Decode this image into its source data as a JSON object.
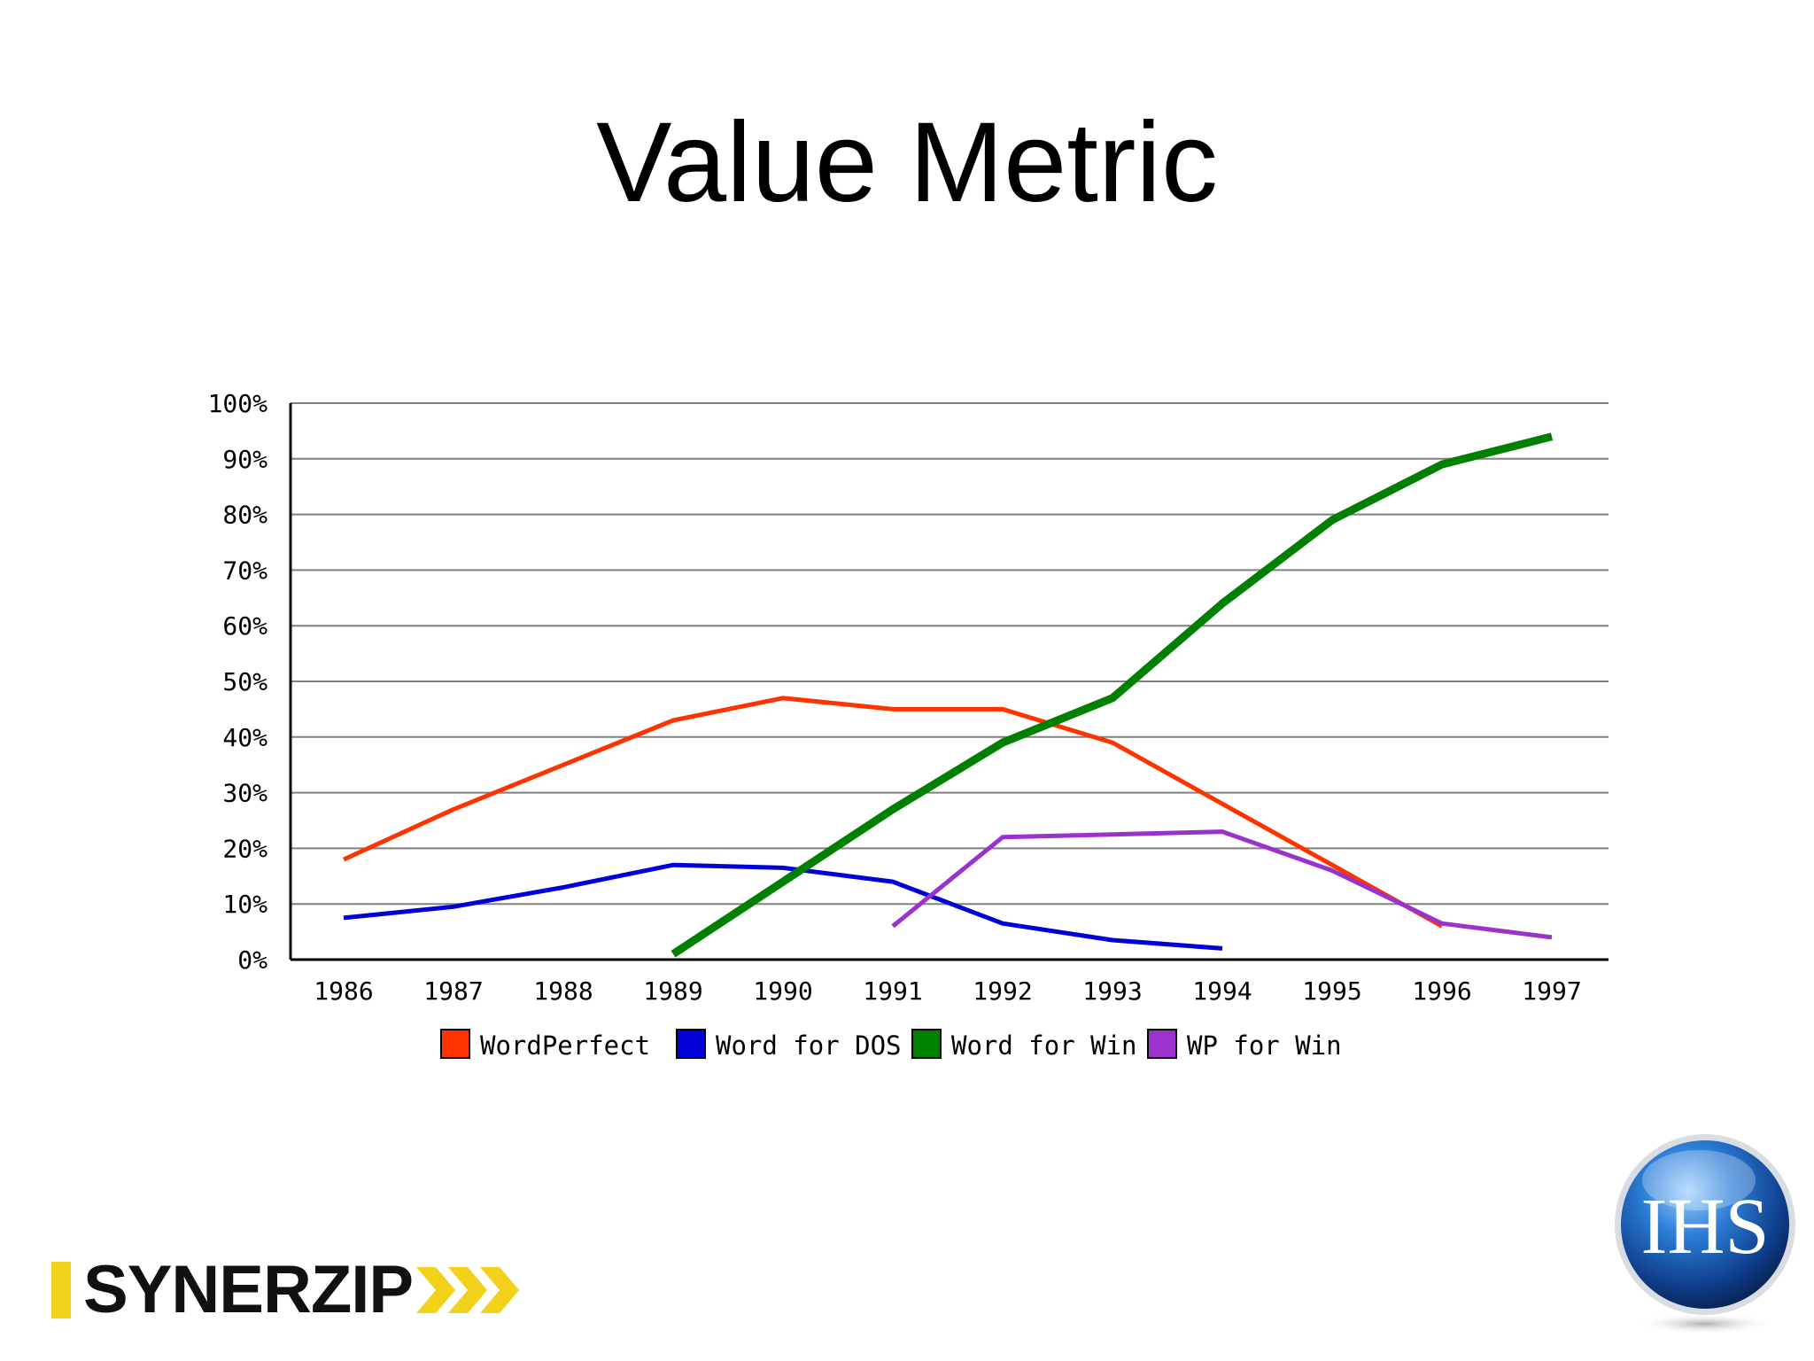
{
  "slide": {
    "title": "Value Metric"
  },
  "logos": {
    "synerzip": "SYNERZIP",
    "ihs": "IHS"
  },
  "colors": {
    "axis": "#000000",
    "grid": "#808080",
    "synerzip_yellow": "#f2d11b",
    "ihs_blue": "#1b58b0"
  },
  "chart_data": {
    "type": "line",
    "title": "",
    "xlabel": "",
    "ylabel": "",
    "ylim": [
      0,
      100
    ],
    "y_unit": "%",
    "y_ticks": [
      "0%",
      "10%",
      "20%",
      "30%",
      "40%",
      "50%",
      "60%",
      "70%",
      "80%",
      "90%",
      "100%"
    ],
    "categories": [
      "1986",
      "1987",
      "1988",
      "1989",
      "1990",
      "1991",
      "1992",
      "1993",
      "1994",
      "1995",
      "1996",
      "1997"
    ],
    "grid": true,
    "legend_position": "bottom",
    "series": [
      {
        "name": "WordPerfect",
        "color": "#ff3300",
        "values": [
          18,
          27,
          35,
          43,
          47,
          45,
          45,
          39,
          28,
          17,
          6,
          null
        ]
      },
      {
        "name": "Word for DOS",
        "color": "#0000d8",
        "values": [
          7.5,
          9.5,
          13,
          17,
          16.5,
          14,
          6.5,
          3.5,
          2,
          null,
          null,
          null
        ]
      },
      {
        "name": "Word for Win",
        "color": "#008000",
        "values": [
          null,
          null,
          null,
          1,
          14,
          27,
          39,
          47,
          64,
          79,
          89,
          94
        ]
      },
      {
        "name": "WP for Win",
        "color": "#9933cc",
        "values": [
          null,
          null,
          null,
          null,
          null,
          6,
          22,
          22.5,
          23,
          16,
          6.5,
          4
        ]
      }
    ]
  }
}
